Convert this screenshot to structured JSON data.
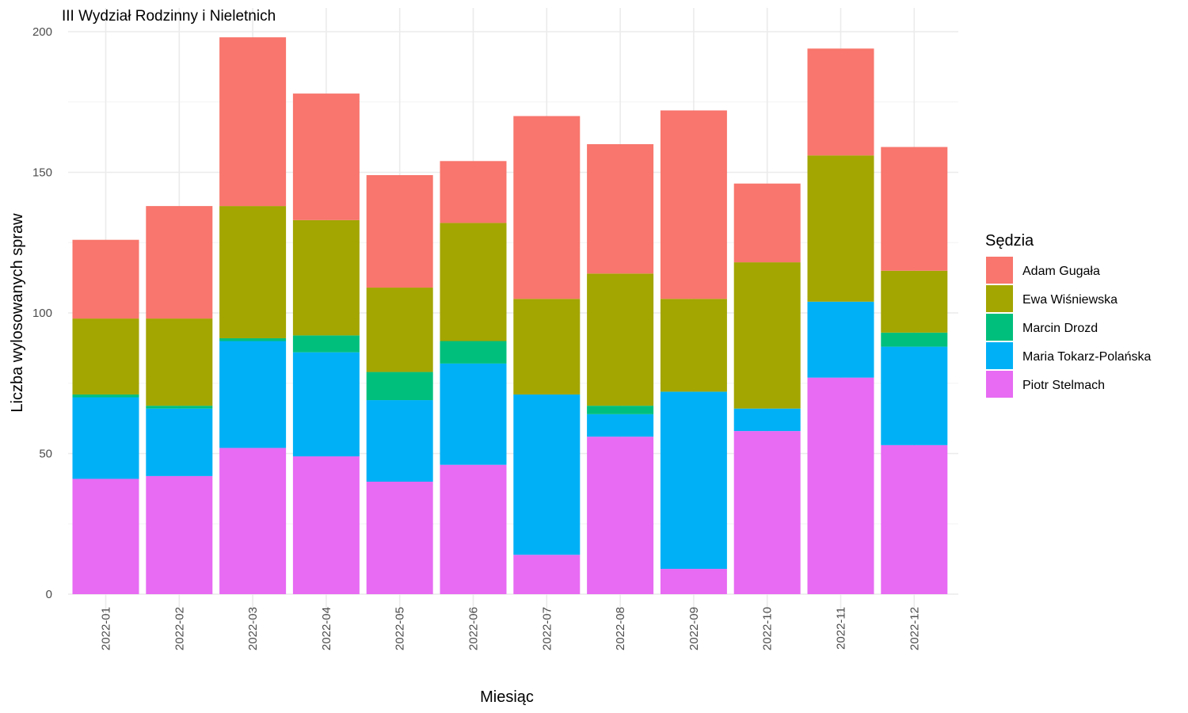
{
  "chart_data": {
    "type": "bar",
    "stacked": true,
    "title": "III Wydział Rodzinny i Nieletnich",
    "xlabel": "Miesiąc",
    "ylabel": "Liczba wylosowanych spraw",
    "ylim": [
      0,
      200
    ],
    "yticks": [
      0,
      50,
      100,
      150,
      200
    ],
    "grid": true,
    "legend": {
      "title": "Sędzia",
      "position": "right"
    },
    "categories": [
      "2022-01",
      "2022-02",
      "2022-03",
      "2022-04",
      "2022-05",
      "2022-06",
      "2022-07",
      "2022-08",
      "2022-09",
      "2022-10",
      "2022-11",
      "2022-12"
    ],
    "series": [
      {
        "name": "Piotr Stelmach",
        "color": "#E76BF3",
        "values": [
          41,
          42,
          52,
          49,
          40,
          46,
          14,
          56,
          9,
          58,
          77,
          53
        ]
      },
      {
        "name": "Maria Tokarz-Polańska",
        "color": "#00B0F6",
        "values": [
          29,
          24,
          38,
          37,
          29,
          36,
          57,
          8,
          63,
          8,
          27,
          35
        ]
      },
      {
        "name": "Marcin Drozd",
        "color": "#00BF7D",
        "values": [
          1,
          1,
          1,
          6,
          10,
          8,
          0,
          3,
          0,
          0,
          0,
          5
        ]
      },
      {
        "name": "Ewa Wiśniewska",
        "color": "#A3A500",
        "values": [
          27,
          31,
          47,
          41,
          30,
          42,
          34,
          47,
          33,
          52,
          52,
          22
        ]
      },
      {
        "name": "Adam Gugała",
        "color": "#F8766D",
        "values": [
          28,
          40,
          60,
          45,
          40,
          22,
          65,
          46,
          67,
          28,
          38,
          44
        ]
      }
    ],
    "legend_order": [
      "Adam Gugała",
      "Ewa Wiśniewska",
      "Marcin Drozd",
      "Maria Tokarz-Polańska",
      "Piotr Stelmach"
    ]
  }
}
